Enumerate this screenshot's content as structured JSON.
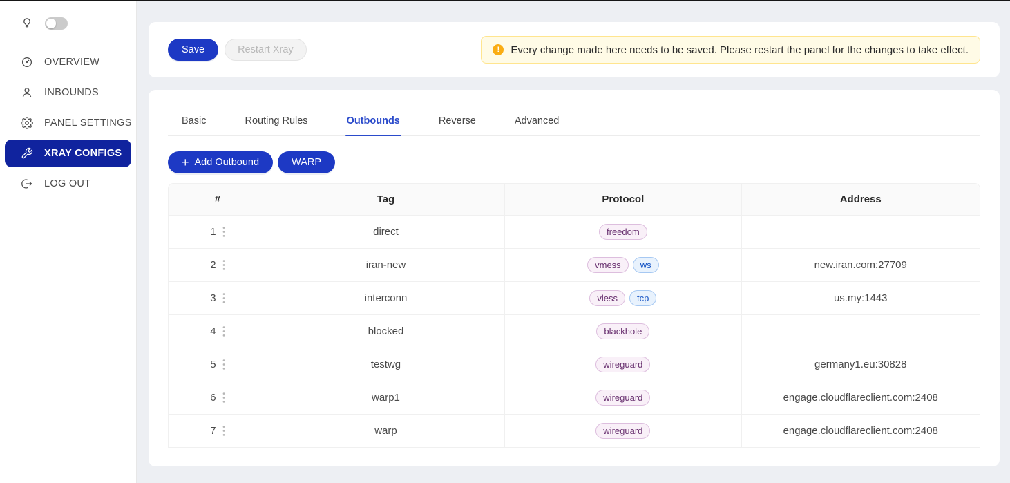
{
  "sidebar": {
    "theme_toggle": {
      "icon": "lightbulb-icon",
      "state": "off"
    },
    "items": [
      {
        "label": "OVERVIEW",
        "icon": "dashboard-icon",
        "active": false
      },
      {
        "label": "INBOUNDS",
        "icon": "user-icon",
        "active": false
      },
      {
        "label": "PANEL SETTINGS",
        "icon": "gear-icon",
        "active": false
      },
      {
        "label": "XRAY CONFIGS",
        "icon": "wrench-icon",
        "active": true
      },
      {
        "label": "LOG OUT",
        "icon": "logout-icon",
        "active": false
      }
    ]
  },
  "toolbar": {
    "save_label": "Save",
    "restart_label": "Restart Xray",
    "alert_text": "Every change made here needs to be saved. Please restart the panel for the changes to take effect."
  },
  "tabs": [
    {
      "label": "Basic",
      "active": false
    },
    {
      "label": "Routing Rules",
      "active": false
    },
    {
      "label": "Outbounds",
      "active": true
    },
    {
      "label": "Reverse",
      "active": false
    },
    {
      "label": "Advanced",
      "active": false
    }
  ],
  "actions": {
    "add_outbound_label": "Add Outbound",
    "warp_label": "WARP"
  },
  "table": {
    "columns": [
      "#",
      "Tag",
      "Protocol",
      "Address"
    ],
    "rows": [
      {
        "num": "1",
        "tag": "direct",
        "badges": [
          {
            "text": "freedom",
            "type": "purple"
          }
        ],
        "address": ""
      },
      {
        "num": "2",
        "tag": "iran-new",
        "badges": [
          {
            "text": "vmess",
            "type": "purple"
          },
          {
            "text": "ws",
            "type": "blue"
          }
        ],
        "address": "new.iran.com:27709"
      },
      {
        "num": "3",
        "tag": "interconn",
        "badges": [
          {
            "text": "vless",
            "type": "purple"
          },
          {
            "text": "tcp",
            "type": "blue"
          }
        ],
        "address": "us.my:1443"
      },
      {
        "num": "4",
        "tag": "blocked",
        "badges": [
          {
            "text": "blackhole",
            "type": "purple"
          }
        ],
        "address": ""
      },
      {
        "num": "5",
        "tag": "testwg",
        "badges": [
          {
            "text": "wireguard",
            "type": "purple"
          }
        ],
        "address": "germany1.eu:30828"
      },
      {
        "num": "6",
        "tag": "warp1",
        "badges": [
          {
            "text": "wireguard",
            "type": "purple"
          }
        ],
        "address": "engage.cloudflareclient.com:2408"
      },
      {
        "num": "7",
        "tag": "warp",
        "badges": [
          {
            "text": "wireguard",
            "type": "purple"
          }
        ],
        "address": "engage.cloudflareclient.com:2408"
      }
    ]
  },
  "colors": {
    "accent": "#1d39c4",
    "sidebar_active": "#10239e",
    "tab_active": "#2b4bcb",
    "alert_bg": "#fffbe6",
    "alert_border": "#ffe58f",
    "warning_icon": "#faad14",
    "badge_purple_bg": "#f9f0f8",
    "badge_purple_border": "#ddbede",
    "badge_purple_text": "#68306f",
    "badge_blue_bg": "#e8f2fd",
    "badge_blue_border": "#a6c8f2",
    "badge_blue_text": "#1453c4"
  }
}
